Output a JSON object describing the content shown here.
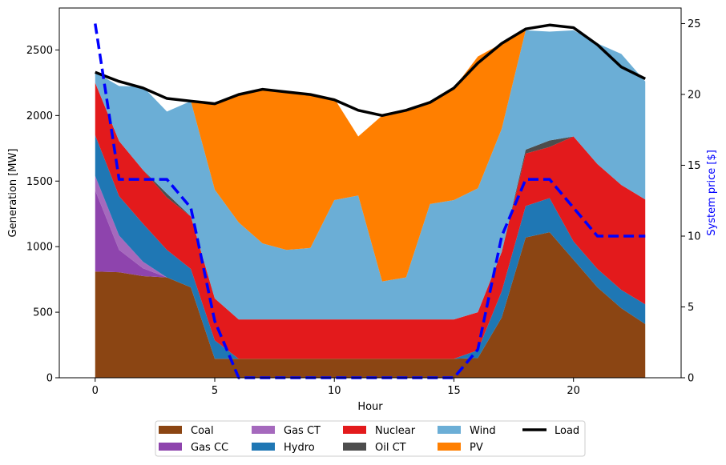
{
  "chart_data": {
    "type": "area",
    "xlabel": "Hour",
    "ylabel": "Generation [MW]",
    "y2label": "System price [$]",
    "xlim": [
      -1.5,
      24.5
    ],
    "ylim": [
      0,
      2820
    ],
    "y2lim": [
      0,
      26.1
    ],
    "xticks": [
      0,
      5,
      10,
      15,
      20
    ],
    "yticks": [
      0,
      500,
      1000,
      1500,
      2000,
      2500
    ],
    "y2ticks": [
      0,
      5,
      10,
      15,
      20,
      25
    ],
    "x": [
      0,
      1,
      2,
      3,
      4,
      5,
      6,
      7,
      8,
      9,
      10,
      11,
      12,
      13,
      14,
      15,
      16,
      17,
      18,
      19,
      20,
      21,
      22,
      23
    ],
    "series": [
      {
        "name": "Coal",
        "color": "#8b4513",
        "values": [
          810,
          805,
          775,
          765,
          690,
          145,
          145,
          145,
          145,
          145,
          145,
          145,
          145,
          145,
          145,
          145,
          150,
          460,
          1070,
          1110,
          900,
          690,
          530,
          410
        ]
      },
      {
        "name": "Gas CC",
        "color": "#8e44ad",
        "values": [
          620,
          170,
          60,
          0,
          0,
          0,
          0,
          0,
          0,
          0,
          0,
          0,
          0,
          0,
          0,
          0,
          0,
          0,
          0,
          0,
          0,
          0,
          0,
          0
        ]
      },
      {
        "name": "Gas CT",
        "color": "#a569bd",
        "values": [
          110,
          110,
          50,
          0,
          0,
          0,
          0,
          0,
          0,
          0,
          0,
          0,
          0,
          0,
          0,
          0,
          0,
          0,
          0,
          0,
          0,
          0,
          0,
          0
        ]
      },
      {
        "name": "Hydro",
        "color": "#1f77b4",
        "values": [
          310,
          300,
          290,
          210,
          140,
          140,
          0,
          0,
          0,
          0,
          0,
          0,
          0,
          0,
          0,
          0,
          60,
          200,
          240,
          260,
          140,
          140,
          140,
          150
        ]
      },
      {
        "name": "Nuclear",
        "color": "#e31a1c",
        "values": [
          400,
          420,
          410,
          400,
          400,
          320,
          300,
          300,
          300,
          300,
          300,
          300,
          300,
          300,
          300,
          300,
          290,
          300,
          400,
          390,
          800,
          800,
          800,
          800
        ]
      },
      {
        "name": "Oil CT",
        "color": "#4d4d4d",
        "values": [
          0,
          0,
          0,
          30,
          0,
          0,
          0,
          0,
          0,
          0,
          0,
          0,
          0,
          0,
          0,
          0,
          0,
          0,
          30,
          50,
          0,
          0,
          0,
          0
        ]
      },
      {
        "name": "Wind",
        "color": "#6baed6",
        "values": [
          80,
          420,
          635,
          625,
          880,
          830,
          740,
          580,
          530,
          545,
          910,
          945,
          290,
          320,
          880,
          910,
          945,
          940,
          910,
          830,
          810,
          920,
          1000,
          900
        ]
      },
      {
        "name": "PV",
        "color": "#ff7f00",
        "values": [
          0,
          0,
          0,
          0,
          0,
          655,
          975,
          1175,
          1205,
          1170,
          775,
          450,
          1265,
          1265,
          780,
          855,
          1005,
          650,
          0,
          0,
          0,
          0,
          0,
          0
        ]
      }
    ],
    "load": {
      "name": "Load",
      "color": "#000000",
      "values": [
        2330,
        2260,
        2210,
        2130,
        2110,
        2090,
        2160,
        2200,
        2180,
        2160,
        2120,
        2040,
        2000,
        2040,
        2100,
        2210,
        2400,
        2550,
        2660,
        2690,
        2670,
        2540,
        2370,
        2280
      ]
    },
    "price": {
      "color": "#0000ff",
      "values": [
        25,
        14,
        14,
        14,
        12,
        4,
        0,
        0,
        0,
        0,
        0,
        0,
        0,
        0,
        0,
        0,
        2,
        10,
        14,
        14,
        12,
        10,
        10,
        10
      ]
    },
    "legend": {
      "placement": "bottom",
      "columns": [
        [
          "Coal",
          "Gas CC"
        ],
        [
          "Gas CT",
          "Hydro"
        ],
        [
          "Nuclear",
          "Oil CT"
        ],
        [
          "Wind",
          "PV"
        ],
        [
          "Load"
        ]
      ]
    }
  }
}
